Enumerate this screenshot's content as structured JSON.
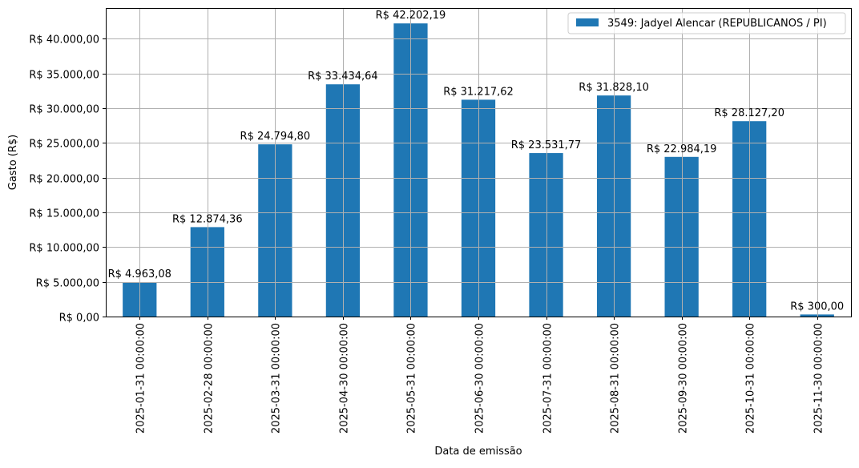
{
  "chart_data": {
    "type": "bar",
    "title": "",
    "xlabel": "Data de emissão",
    "ylabel": "Gasto (R$)",
    "ylim": [
      0,
      44420
    ],
    "grid": true,
    "legend_position": "upper right",
    "bar_color": "#1f77b4",
    "categories": [
      "2025-01-31 00:00:00",
      "2025-02-28 00:00:00",
      "2025-03-31 00:00:00",
      "2025-04-30 00:00:00",
      "2025-05-31 00:00:00",
      "2025-06-30 00:00:00",
      "2025-07-31 00:00:00",
      "2025-08-31 00:00:00",
      "2025-09-30 00:00:00",
      "2025-10-31 00:00:00",
      "2025-11-30 00:00:00"
    ],
    "series": [
      {
        "name": "3549: Jadyel Alencar (REPUBLICANOS / PI)",
        "values": [
          4963.08,
          12874.36,
          24794.8,
          33434.64,
          42202.19,
          31217.62,
          23531.77,
          31828.1,
          22984.19,
          28127.2,
          300.0
        ],
        "labels": [
          "R$ 4.963,08",
          "R$ 12.874,36",
          "R$ 24.794,80",
          "R$ 33.434,64",
          "R$ 42.202,19",
          "R$ 31.217,62",
          "R$ 23.531,77",
          "R$ 31.828,10",
          "R$ 22.984,19",
          "R$ 28.127,20",
          "R$ 300,00"
        ]
      }
    ],
    "y_ticks": [
      {
        "value": 0,
        "label": "R$ 0,00"
      },
      {
        "value": 5000,
        "label": "R$ 5.000,00"
      },
      {
        "value": 10000,
        "label": "R$ 10.000,00"
      },
      {
        "value": 15000,
        "label": "R$ 15.000,00"
      },
      {
        "value": 20000,
        "label": "R$ 20.000,00"
      },
      {
        "value": 25000,
        "label": "R$ 25.000,00"
      },
      {
        "value": 30000,
        "label": "R$ 30.000,00"
      },
      {
        "value": 35000,
        "label": "R$ 35.000,00"
      },
      {
        "value": 40000,
        "label": "R$ 40.000,00"
      }
    ]
  }
}
